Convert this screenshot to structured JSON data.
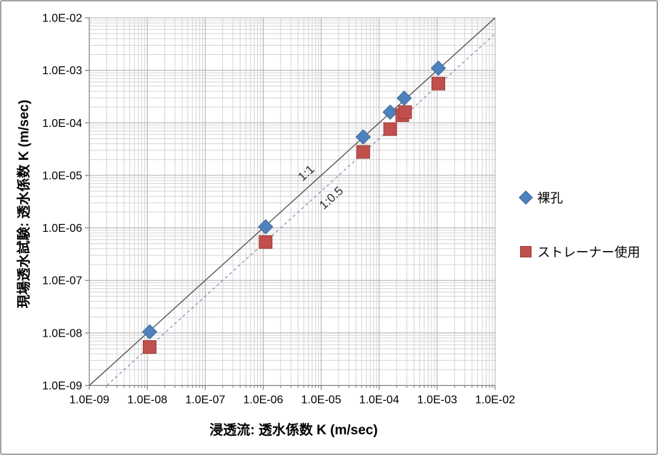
{
  "chart_data": {
    "type": "scatter",
    "title": "",
    "xlabel": "浸透流: 透水係数 K (m/sec)",
    "ylabel": "現場透水試験: 透水係数 K (m/sec)",
    "x_scale": "log",
    "y_scale": "log",
    "xlim": [
      1e-09,
      0.01
    ],
    "ylim": [
      1e-09,
      0.01
    ],
    "grid": "major and minor log gridlines, both axes",
    "legend_position": "right-outside",
    "x_tick_labels": [
      "1.0E-09",
      "1.0E-08",
      "1.0E-07",
      "1.0E-06",
      "1.0E-05",
      "1.0E-04",
      "1.0E-03",
      "1.0E-02"
    ],
    "y_tick_labels": [
      "1.0E-02",
      "1.0E-03",
      "1.0E-04",
      "1.0E-05",
      "1.0E-06",
      "1.0E-07",
      "1.0E-08",
      "1.0E-09"
    ],
    "series": [
      {
        "name": "裸孔",
        "marker": "diamond",
        "color": "#4F81BD",
        "edge_color": "#3A6A9B",
        "points": [
          [
            1.1e-08,
            1.05e-08
          ],
          [
            1.1e-06,
            1.05e-06
          ],
          [
            5.3e-05,
            5.4e-05
          ],
          [
            0.000155,
            0.00016
          ],
          [
            0.00027,
            0.000295
          ],
          [
            0.00105,
            0.0011
          ]
        ]
      },
      {
        "name": "ストレーナー使用",
        "marker": "square",
        "color": "#C0504D",
        "edge_color": "#9E3B38",
        "points": [
          [
            1.1e-08,
            5.4e-09
          ],
          [
            1.1e-06,
            5.4e-07
          ],
          [
            5.3e-05,
            2.8e-05
          ],
          [
            0.000155,
            7.6e-05
          ],
          [
            0.00025,
            0.00014
          ],
          [
            0.00028,
            0.00016
          ],
          [
            0.00105,
            0.00056
          ]
        ]
      }
    ],
    "reference_lines": [
      {
        "label": "1:1",
        "equation_factor": 1,
        "style": "solid",
        "color": "#4d4d4d"
      },
      {
        "label": "1:0.5",
        "equation_factor": 0.5,
        "style": "dashed",
        "color": "#9688C1"
      }
    ],
    "annotations": [
      {
        "text": "1:1"
      },
      {
        "text": "1:0.5"
      }
    ],
    "colors": {
      "major_grid": "#adadad",
      "minor_grid": "#d4d4d4",
      "axis_line": "#7f7f7f",
      "tick_text": "#000000"
    }
  }
}
